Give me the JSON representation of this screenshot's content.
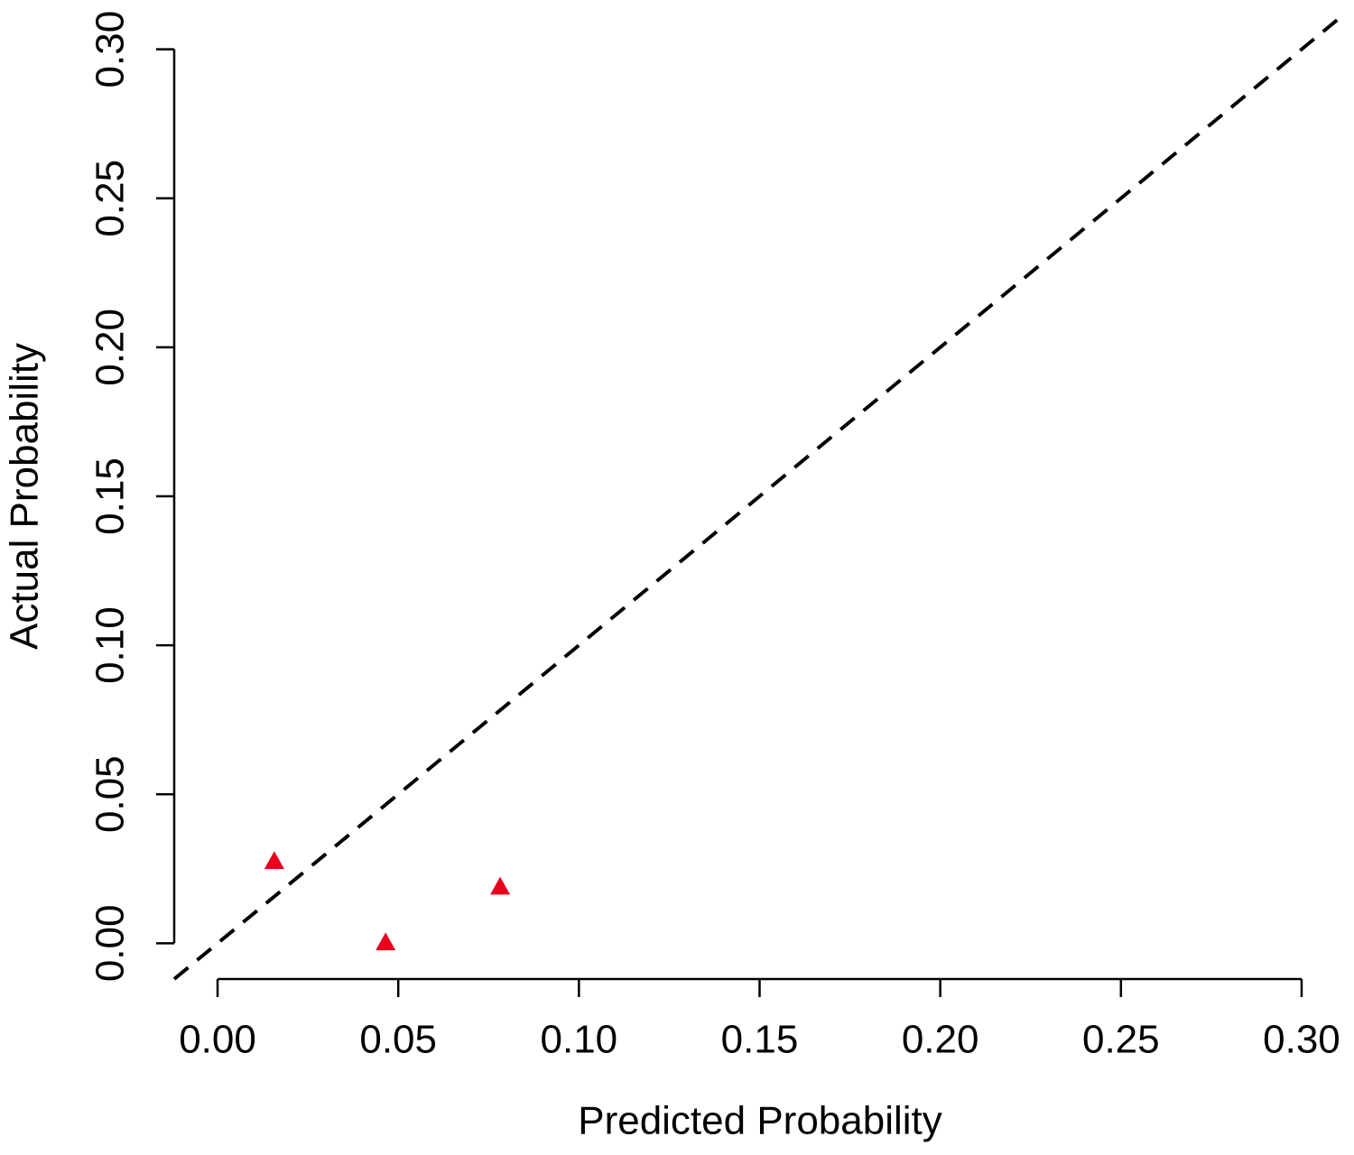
{
  "chart_data": {
    "type": "scatter",
    "xlabel": "Predicted Probability",
    "ylabel": "Actual Probability",
    "x": [
      0.0157,
      0.0465,
      0.0782
    ],
    "values": [
      0.0276,
      0.0003,
      0.019
    ],
    "color": "#e8001c",
    "marker": "triangle",
    "diagonal": true,
    "diagonal_color": "#000000",
    "xlim": [
      -0.012,
      0.312
    ],
    "ylim": [
      -0.012,
      0.312
    ],
    "xticks": [
      {
        "value": 0,
        "label": "0.00"
      },
      0.05,
      {
        "value": 0.1,
        "label": "0.10"
      },
      0.15,
      {
        "value": 0.2,
        "label": "0.20"
      },
      0.25,
      {
        "value": 0.3,
        "label": "0.30"
      }
    ],
    "yticks": [
      {
        "value": 0,
        "label": "0.00"
      },
      0.05,
      {
        "value": 0.1,
        "label": "0.10"
      },
      0.15,
      {
        "value": 0.2,
        "label": "0.20"
      },
      0.25,
      {
        "value": 0.3,
        "label": "0.30"
      }
    ]
  }
}
